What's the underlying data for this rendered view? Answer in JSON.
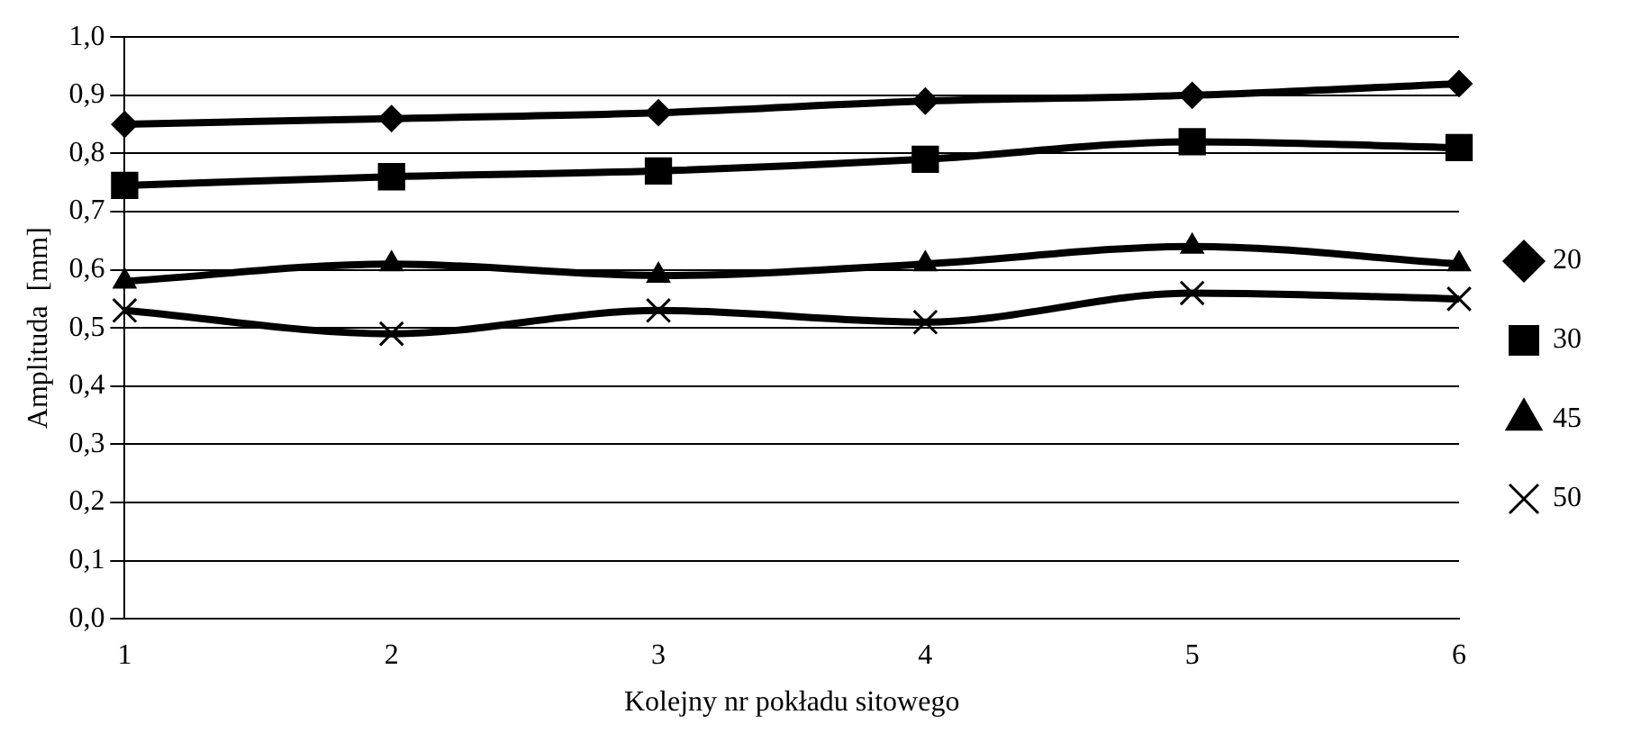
{
  "chart_data": {
    "type": "line",
    "xlabel": "Kolejny nr pokładu sitowego",
    "ylabel": "Amplituda  [mm]",
    "categories": [
      "1",
      "2",
      "3",
      "4",
      "5",
      "6"
    ],
    "series": [
      {
        "name": "20",
        "color": "#000000",
        "marker": "diamond",
        "values": [
          0.85,
          0.86,
          0.87,
          0.89,
          0.9,
          0.92
        ]
      },
      {
        "name": "30",
        "color": "#000000",
        "marker": "square",
        "values": [
          0.745,
          0.76,
          0.77,
          0.79,
          0.82,
          0.81
        ]
      },
      {
        "name": "45",
        "color": "#000000",
        "marker": "triangle",
        "values": [
          0.58,
          0.61,
          0.59,
          0.61,
          0.64,
          0.61
        ]
      },
      {
        "name": "50",
        "color": "#000000",
        "marker": "cross",
        "values": [
          0.53,
          0.49,
          0.53,
          0.51,
          0.56,
          0.55
        ]
      }
    ],
    "ylim": [
      0,
      1
    ],
    "yticks": [
      {
        "value": 0,
        "label": "0,0"
      },
      {
        "value": 0.1,
        "label": "0,1"
      },
      {
        "value": 0.2,
        "label": "0,2"
      },
      {
        "value": 0.3,
        "label": "0,3"
      },
      {
        "value": 0.4,
        "label": "0,4"
      },
      {
        "value": 0.5,
        "label": "0,5"
      },
      {
        "value": 0.6,
        "label": "0,6"
      },
      {
        "value": 0.7,
        "label": "0,7"
      },
      {
        "value": 0.8,
        "label": "0,8"
      },
      {
        "value": 0.9,
        "label": "0,9"
      },
      {
        "value": 1,
        "label": "1,0"
      }
    ],
    "grid": "y",
    "legend": "right",
    "line_style": "solid"
  }
}
